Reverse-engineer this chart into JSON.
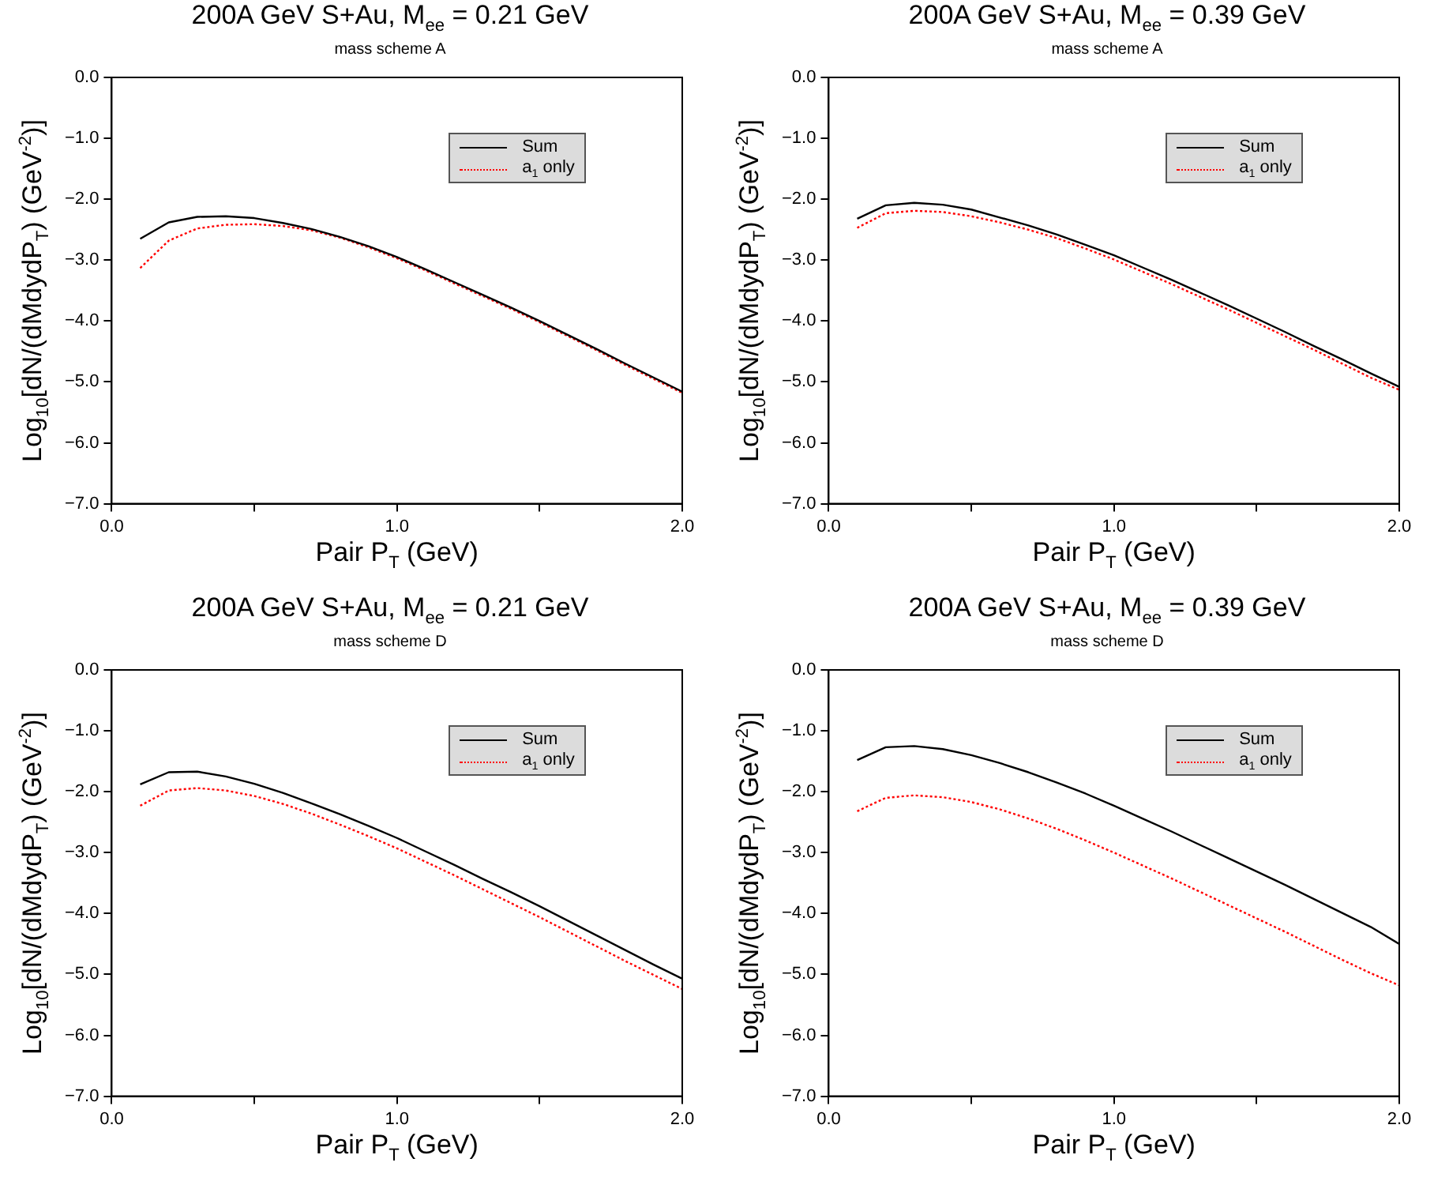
{
  "chart_data": [
    {
      "type": "line",
      "title": "200A GeV S+Au, M$_{ee}$ = 0.21 GeV",
      "subtitle": "mass scheme A",
      "xlabel": "Pair P$_{T}$ (GeV)",
      "ylabel": "Log$_{10}$[dN/(dMdydP$_{T}$) (GeV$^{-2}$)]",
      "x": [
        0.1,
        0.2,
        0.3,
        0.4,
        0.5,
        0.6,
        0.7,
        0.8,
        0.9,
        1.0,
        1.1,
        1.2,
        1.3,
        1.4,
        1.5,
        1.6,
        1.7,
        1.8,
        1.9,
        2.0
      ],
      "series": [
        {
          "name": "Sum",
          "color": "#000000",
          "line_style": "solid",
          "values": [
            -2.65,
            -2.38,
            -2.29,
            -2.28,
            -2.31,
            -2.39,
            -2.49,
            -2.62,
            -2.77,
            -2.95,
            -3.15,
            -3.36,
            -3.57,
            -3.78,
            -4.0,
            -4.23,
            -4.46,
            -4.7,
            -4.93,
            -5.16
          ]
        },
        {
          "name": "a$_{1}$ only",
          "color": "#ff0000",
          "line_style": "dotted",
          "values": [
            -3.13,
            -2.68,
            -2.48,
            -2.42,
            -2.41,
            -2.44,
            -2.51,
            -2.63,
            -2.79,
            -2.97,
            -3.17,
            -3.38,
            -3.59,
            -3.8,
            -4.02,
            -4.25,
            -4.48,
            -4.72,
            -4.95,
            -5.18
          ]
        }
      ],
      "xlim": [
        0,
        2
      ],
      "xticks": [
        {
          "value": 0,
          "label": "0.0"
        },
        {
          "value": 0.5,
          "label": null
        },
        {
          "value": 1,
          "label": "1.0"
        },
        {
          "value": 1.5,
          "label": null
        },
        {
          "value": 2,
          "label": "2.0"
        }
      ],
      "ylim": [
        -7,
        0
      ],
      "yticks": [
        {
          "value": -7,
          "label": "−7.0"
        },
        {
          "value": -6,
          "label": "−6.0"
        },
        {
          "value": -5,
          "label": "−5.0"
        },
        {
          "value": -4,
          "label": "−4.0"
        },
        {
          "value": -3,
          "label": "−3.0"
        },
        {
          "value": -2,
          "label": "−2.0"
        },
        {
          "value": -1,
          "label": "−1.0"
        },
        {
          "value": 0,
          "label": "0.0"
        }
      ],
      "legend": "top right",
      "marker": "none",
      "grid": false
    },
    {
      "type": "line",
      "title": "200A GeV S+Au, M$_{ee}$ = 0.39 GeV",
      "subtitle": "mass scheme A",
      "xlabel": "Pair P$_{T}$ (GeV)",
      "ylabel": "Log$_{10}$[dN/(dMdydP$_{T}$) (GeV$^{-2}$)]",
      "x": [
        0.1,
        0.2,
        0.3,
        0.4,
        0.5,
        0.6,
        0.7,
        0.8,
        0.9,
        1.0,
        1.1,
        1.2,
        1.3,
        1.4,
        1.5,
        1.6,
        1.7,
        1.8,
        1.9,
        2.0
      ],
      "series": [
        {
          "name": "Sum",
          "color": "#000000",
          "line_style": "solid",
          "values": [
            -2.32,
            -2.1,
            -2.06,
            -2.09,
            -2.17,
            -2.3,
            -2.43,
            -2.58,
            -2.75,
            -2.92,
            -3.12,
            -3.32,
            -3.53,
            -3.74,
            -3.96,
            -4.18,
            -4.41,
            -4.63,
            -4.86,
            -5.08
          ]
        },
        {
          "name": "a$_{1}$ only",
          "color": "#ff0000",
          "line_style": "dotted",
          "values": [
            -2.47,
            -2.23,
            -2.19,
            -2.21,
            -2.28,
            -2.38,
            -2.5,
            -2.64,
            -2.81,
            -2.99,
            -3.19,
            -3.39,
            -3.6,
            -3.81,
            -4.03,
            -4.25,
            -4.47,
            -4.7,
            -4.93,
            -5.13
          ]
        }
      ],
      "xlim": [
        0,
        2
      ],
      "xticks": [
        {
          "value": 0,
          "label": "0.0"
        },
        {
          "value": 0.5,
          "label": null
        },
        {
          "value": 1,
          "label": "1.0"
        },
        {
          "value": 1.5,
          "label": null
        },
        {
          "value": 2,
          "label": "2.0"
        }
      ],
      "ylim": [
        -7,
        0
      ],
      "yticks": [
        {
          "value": -7,
          "label": "−7.0"
        },
        {
          "value": -6,
          "label": "−6.0"
        },
        {
          "value": -5,
          "label": "−5.0"
        },
        {
          "value": -4,
          "label": "−4.0"
        },
        {
          "value": -3,
          "label": "−3.0"
        },
        {
          "value": -2,
          "label": "−2.0"
        },
        {
          "value": -1,
          "label": "−1.0"
        },
        {
          "value": 0,
          "label": "0.0"
        }
      ],
      "legend": "top right",
      "marker": "none",
      "grid": false
    },
    {
      "type": "line",
      "title": "200A GeV S+Au, M$_{ee}$ = 0.21 GeV",
      "subtitle": "mass scheme D",
      "xlabel": "Pair P$_{T}$ (GeV)",
      "ylabel": "Log$_{10}$[dN/(dMdydP$_{T}$) (GeV$^{-2}$)]",
      "x": [
        0.1,
        0.2,
        0.3,
        0.4,
        0.5,
        0.6,
        0.7,
        0.8,
        0.9,
        1.0,
        1.1,
        1.2,
        1.3,
        1.4,
        1.5,
        1.6,
        1.7,
        1.8,
        1.9,
        2.0
      ],
      "series": [
        {
          "name": "Sum",
          "color": "#000000",
          "line_style": "solid",
          "values": [
            -1.88,
            -1.68,
            -1.67,
            -1.75,
            -1.87,
            -2.02,
            -2.19,
            -2.37,
            -2.56,
            -2.76,
            -2.98,
            -3.2,
            -3.43,
            -3.65,
            -3.88,
            -4.12,
            -4.36,
            -4.6,
            -4.84,
            -5.07
          ]
        },
        {
          "name": "a$_{1}$ only",
          "color": "#ff0000",
          "line_style": "dotted",
          "values": [
            -2.23,
            -1.98,
            -1.94,
            -1.98,
            -2.07,
            -2.2,
            -2.36,
            -2.54,
            -2.73,
            -2.93,
            -3.15,
            -3.37,
            -3.6,
            -3.83,
            -4.06,
            -4.3,
            -4.54,
            -4.78,
            -5.01,
            -5.24
          ]
        }
      ],
      "xlim": [
        0,
        2
      ],
      "xticks": [
        {
          "value": 0,
          "label": "0.0"
        },
        {
          "value": 0.5,
          "label": null
        },
        {
          "value": 1,
          "label": "1.0"
        },
        {
          "value": 1.5,
          "label": null
        },
        {
          "value": 2,
          "label": "2.0"
        }
      ],
      "ylim": [
        -7,
        0
      ],
      "yticks": [
        {
          "value": -7,
          "label": "−7.0"
        },
        {
          "value": -6,
          "label": "−6.0"
        },
        {
          "value": -5,
          "label": "−5.0"
        },
        {
          "value": -4,
          "label": "−4.0"
        },
        {
          "value": -3,
          "label": "−3.0"
        },
        {
          "value": -2,
          "label": "−2.0"
        },
        {
          "value": -1,
          "label": "−1.0"
        },
        {
          "value": 0,
          "label": "0.0"
        }
      ],
      "legend": "top right",
      "marker": "none",
      "grid": false
    },
    {
      "type": "line",
      "title": "200A GeV S+Au, M$_{ee}$ = 0.39 GeV",
      "subtitle": "mass scheme D",
      "xlabel": "Pair P$_{T}$ (GeV)",
      "ylabel": "Log$_{10}$[dN/(dMdydP$_{T}$) (GeV$^{-2}$)]",
      "x": [
        0.1,
        0.2,
        0.3,
        0.4,
        0.5,
        0.6,
        0.7,
        0.8,
        0.9,
        1.0,
        1.1,
        1.2,
        1.3,
        1.4,
        1.5,
        1.6,
        1.7,
        1.8,
        1.9,
        2.0
      ],
      "series": [
        {
          "name": "Sum",
          "color": "#000000",
          "line_style": "solid",
          "values": [
            -1.48,
            -1.27,
            -1.25,
            -1.3,
            -1.4,
            -1.53,
            -1.68,
            -1.85,
            -2.03,
            -2.23,
            -2.44,
            -2.65,
            -2.87,
            -3.09,
            -3.31,
            -3.53,
            -3.76,
            -3.99,
            -4.22,
            -4.5
          ]
        },
        {
          "name": "a$_{1}$ only",
          "color": "#ff0000",
          "line_style": "dotted",
          "values": [
            -2.32,
            -2.1,
            -2.06,
            -2.09,
            -2.17,
            -2.29,
            -2.44,
            -2.61,
            -2.8,
            -3.0,
            -3.21,
            -3.42,
            -3.64,
            -3.86,
            -4.08,
            -4.3,
            -4.53,
            -4.76,
            -4.98,
            -5.18
          ]
        }
      ],
      "xlim": [
        0,
        2
      ],
      "xticks": [
        {
          "value": 0,
          "label": "0.0"
        },
        {
          "value": 0.5,
          "label": null
        },
        {
          "value": 1,
          "label": "1.0"
        },
        {
          "value": 1.5,
          "label": null
        },
        {
          "value": 2,
          "label": "2.0"
        }
      ],
      "ylim": [
        -7,
        0
      ],
      "yticks": [
        {
          "value": -7,
          "label": "−7.0"
        },
        {
          "value": -6,
          "label": "−6.0"
        },
        {
          "value": -5,
          "label": "−5.0"
        },
        {
          "value": -4,
          "label": "−4.0"
        },
        {
          "value": -3,
          "label": "−3.0"
        },
        {
          "value": -2,
          "label": "−2.0"
        },
        {
          "value": -1,
          "label": "−1.0"
        },
        {
          "value": 0,
          "label": "0.0"
        }
      ],
      "legend": "top right",
      "marker": "none",
      "grid": false
    }
  ]
}
